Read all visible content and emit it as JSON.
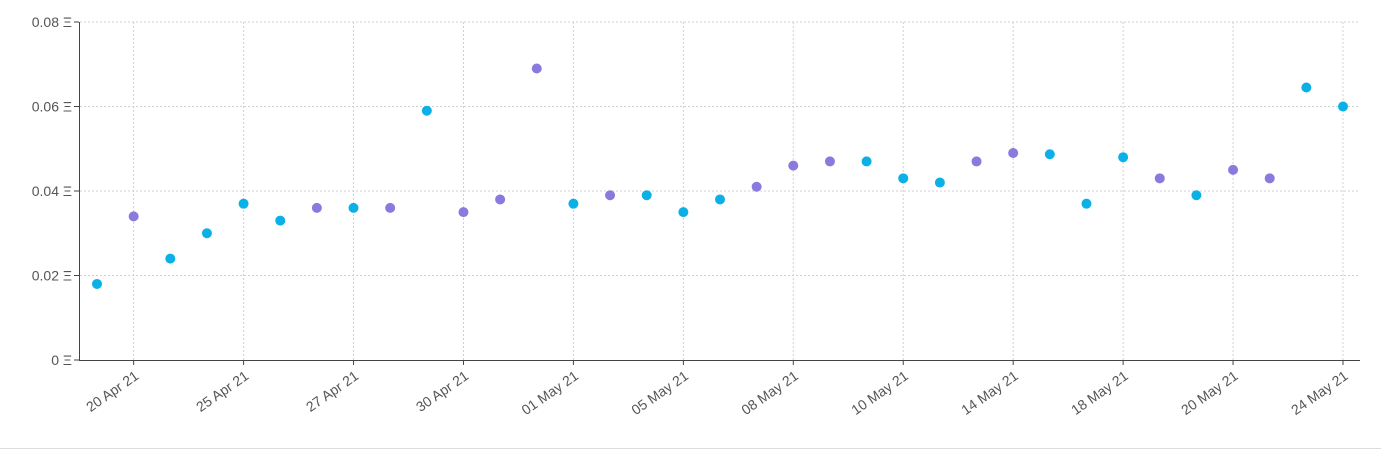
{
  "chart_data": {
    "type": "scatter",
    "categories": [
      null,
      "20 Apr 21",
      null,
      null,
      "25 Apr 21",
      null,
      null,
      "27 Apr 21",
      null,
      null,
      "30 Apr 21",
      null,
      null,
      "01 May 21",
      null,
      null,
      "05 May 21",
      null,
      null,
      "08 May 21",
      null,
      null,
      "10 May 21",
      null,
      null,
      "14 May 21",
      null,
      null,
      "18 May 21",
      null,
      null,
      "20 May 21",
      null,
      null,
      "24 May 21"
    ],
    "values": [
      0.018,
      0.034,
      0.024,
      0.03,
      0.037,
      0.033,
      0.036,
      0.036,
      0.036,
      0.059,
      0.035,
      0.038,
      0.069,
      0.037,
      0.039,
      0.039,
      0.035,
      0.038,
      0.041,
      0.046,
      0.047,
      0.047,
      0.043,
      0.042,
      0.047,
      0.049,
      0.0487,
      0.037,
      0.048,
      0.043,
      0.039,
      0.045,
      0.043,
      0.0645,
      0.06
    ],
    "colors": [
      "#0bb1e6",
      "#8c79de",
      "#0bb1e6",
      "#0bb1e6",
      "#0bb1e6",
      "#0bb1e6",
      "#8c79de",
      "#0bb1e6",
      "#8c79de",
      "#0bb1e6",
      "#8c79de",
      "#8c79de",
      "#8c79de",
      "#0bb1e6",
      "#8c79de",
      "#0bb1e6",
      "#0bb1e6",
      "#0bb1e6",
      "#8c79de",
      "#8c79de",
      "#8c79de",
      "#0bb1e6",
      "#0bb1e6",
      "#0bb1e6",
      "#8c79de",
      "#8c79de",
      "#0bb1e6",
      "#0bb1e6",
      "#0bb1e6",
      "#8c79de",
      "#0bb1e6",
      "#8c79de",
      "#8c79de",
      "#0bb1e6",
      "#0bb1e6"
    ],
    "ylim": [
      0,
      0.08
    ],
    "yticks": [
      {
        "value": 0,
        "label": "0 Ξ"
      },
      {
        "value": 0.02,
        "label": "0.02 Ξ"
      },
      {
        "value": 0.04,
        "label": "0.04 Ξ"
      },
      {
        "value": 0.06,
        "label": "0.06 Ξ"
      },
      {
        "value": 0.08,
        "label": "0.08 Ξ"
      }
    ],
    "grid": true
  }
}
